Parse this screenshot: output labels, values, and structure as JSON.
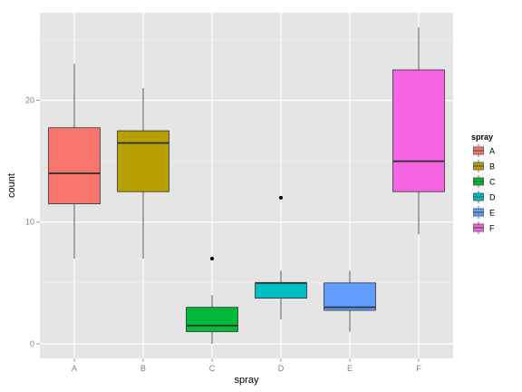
{
  "chart_data": {
    "type": "boxplot",
    "title": "",
    "xlabel": "spray",
    "ylabel": "count",
    "ylim": [
      -1.2,
      27.2
    ],
    "yticks": [
      0,
      10,
      20
    ],
    "grid": true,
    "categories": [
      "A",
      "B",
      "C",
      "D",
      "E",
      "F"
    ],
    "boxes": [
      {
        "name": "A",
        "min": 7,
        "q1": 11.5,
        "median": 14,
        "q3": 17.75,
        "max": 23,
        "outliers": []
      },
      {
        "name": "B",
        "min": 7,
        "q1": 12.5,
        "median": 16.5,
        "q3": 17.5,
        "max": 21,
        "outliers": []
      },
      {
        "name": "C",
        "min": 0,
        "q1": 1,
        "median": 1.5,
        "q3": 3,
        "max": 4,
        "outliers": [
          7
        ]
      },
      {
        "name": "D",
        "min": 2,
        "q1": 3.75,
        "median": 5,
        "q3": 5,
        "max": 6,
        "outliers": [
          12
        ]
      },
      {
        "name": "E",
        "min": 1,
        "q1": 2.75,
        "median": 3,
        "q3": 5,
        "max": 6,
        "outliers": []
      },
      {
        "name": "F",
        "min": 9,
        "q1": 12.5,
        "median": 15,
        "q3": 22.5,
        "max": 26,
        "outliers": []
      }
    ],
    "colors": [
      "#F8766D",
      "#B79F00",
      "#00BA38",
      "#00BFC4",
      "#619CFF",
      "#F564E3"
    ],
    "legend": {
      "title": "spray",
      "position": "right",
      "labels": [
        "A",
        "B",
        "C",
        "D",
        "E",
        "F"
      ]
    }
  }
}
